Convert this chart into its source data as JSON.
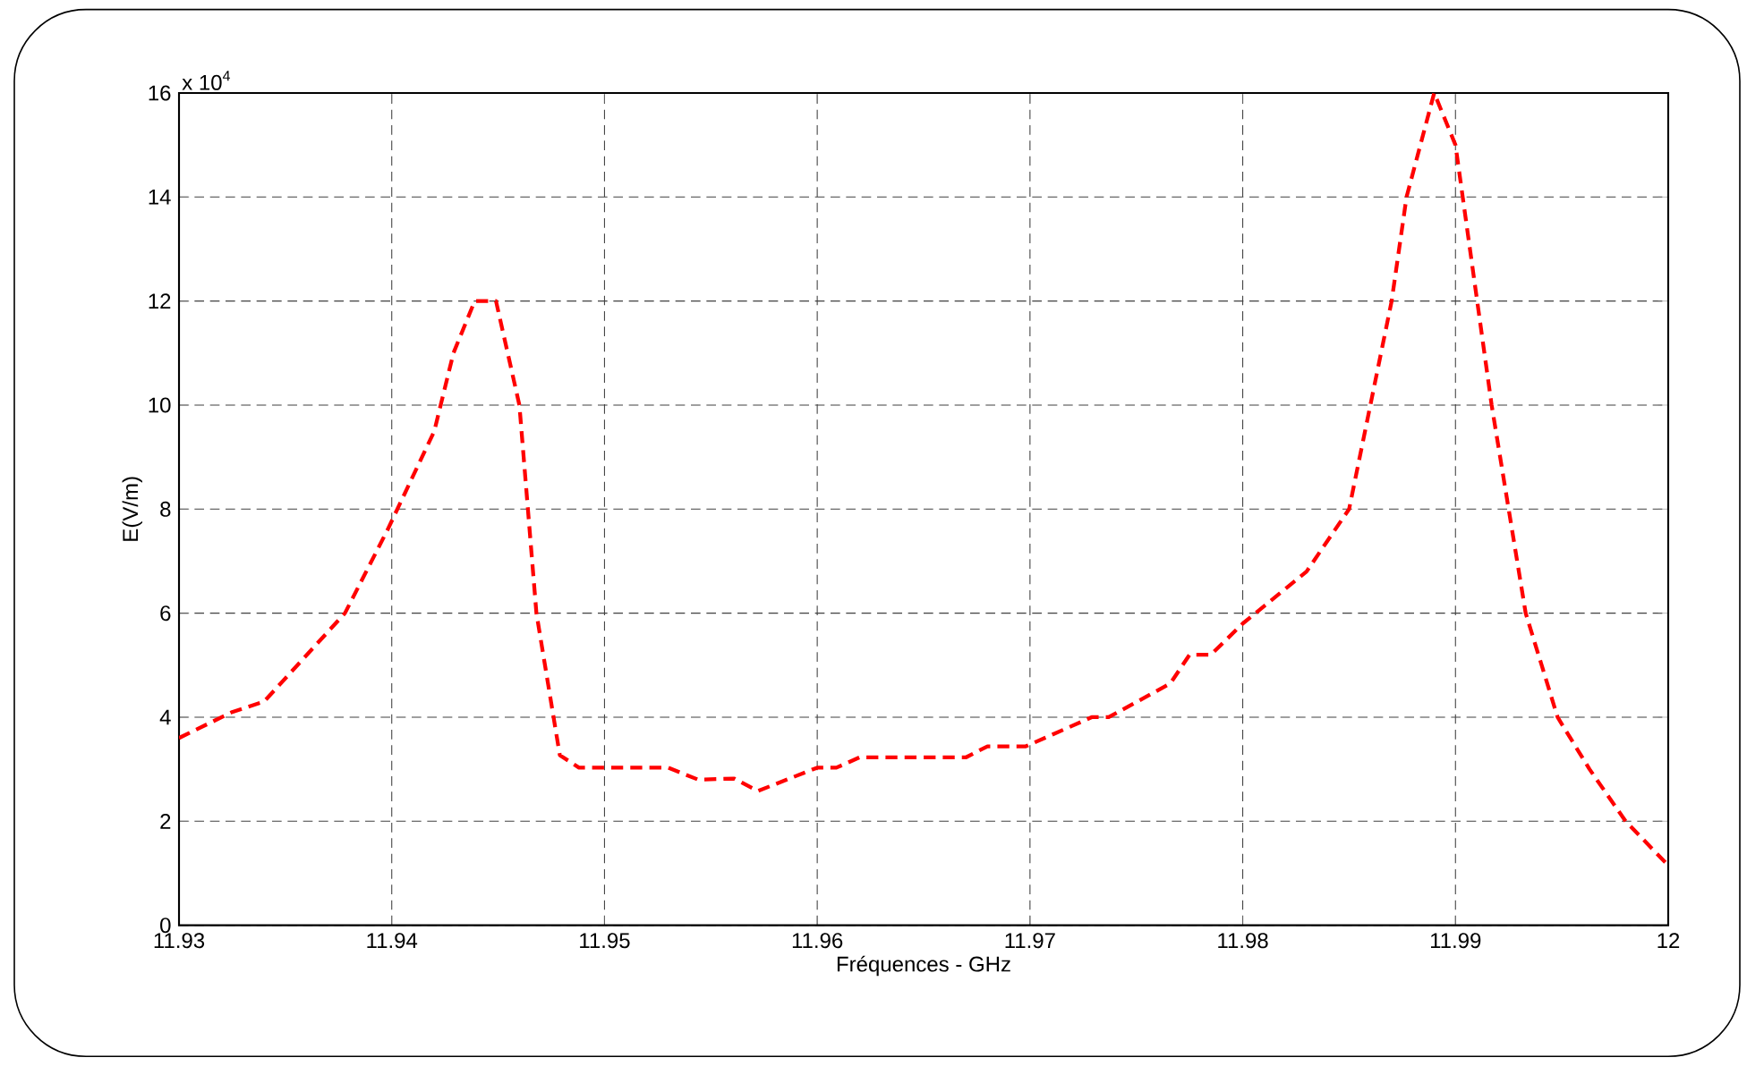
{
  "chart_data": {
    "type": "line",
    "xlabel": "Fréquences - GHz",
    "ylabel": "E(V/m)",
    "annotations": [
      "x 10$^{4}$"
    ],
    "xlim": [
      11.93,
      12
    ],
    "xticks": [
      11.93,
      11.94,
      11.95,
      11.96,
      11.97,
      11.98,
      11.99,
      12
    ],
    "ylim": [
      0,
      16
    ],
    "yticks": [
      0,
      2,
      4,
      6,
      8,
      10,
      12,
      14,
      16
    ],
    "grid": true,
    "marker": "none",
    "line_style": "dashed",
    "series": [
      {
        "color": "#ff0000",
        "x": [
          11.93,
          11.9325,
          11.934,
          11.9378,
          11.9398,
          11.942,
          11.9429,
          11.9439,
          11.9449,
          11.946,
          11.9468,
          11.9479,
          11.9488,
          11.953,
          11.9544,
          11.9561,
          11.9572,
          11.96,
          11.9609,
          11.962,
          11.967,
          11.968,
          11.9698,
          11.9729,
          11.9737,
          11.9766,
          11.9775,
          11.9785,
          11.98,
          11.983,
          11.985,
          11.986,
          11.987,
          11.9877,
          11.989,
          11.99,
          11.9917,
          11.9933,
          11.9948,
          11.9963,
          11.998,
          12
        ],
        "values": [
          3.6,
          4.1,
          4.3,
          6.0,
          7.6,
          9.5,
          11.0,
          12.0,
          12.0,
          10.0,
          6.0,
          3.27,
          3.03,
          3.03,
          2.8,
          2.82,
          2.58,
          3.03,
          3.03,
          3.23,
          3.23,
          3.44,
          3.44,
          4.0,
          4.0,
          4.65,
          5.2,
          5.2,
          5.8,
          6.8,
          8.0,
          10.0,
          12.0,
          14.0,
          16.0,
          15.0,
          10.0,
          6.0,
          4.0,
          3.0,
          2.0,
          1.15
        ]
      }
    ]
  }
}
